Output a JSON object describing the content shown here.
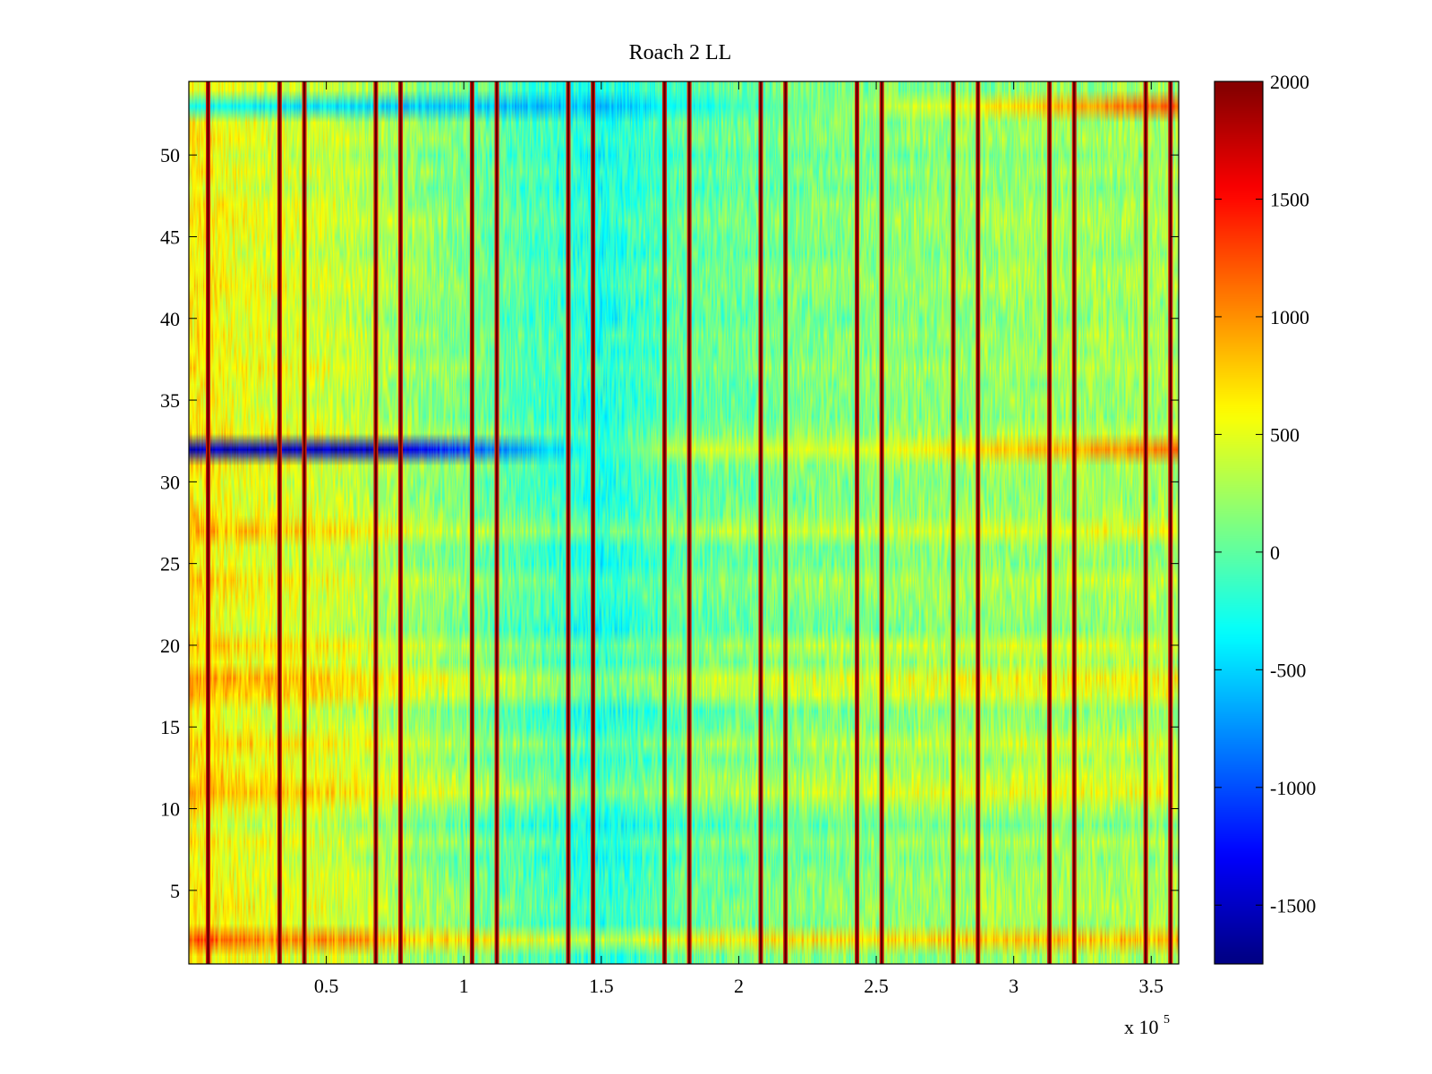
{
  "chart_data": {
    "type": "heatmap",
    "title": "Roach 2 LL",
    "xlabel": "",
    "ylabel": "",
    "x_exponent_label": {
      "base": "x 10",
      "exponent": "5"
    },
    "xlim": [
      0,
      360000
    ],
    "ylim": [
      0.5,
      54.5
    ],
    "rows": 54,
    "x_ticks": [
      {
        "value": 50000,
        "label": "0.5"
      },
      {
        "value": 100000,
        "label": "1"
      },
      {
        "value": 150000,
        "label": "1.5"
      },
      {
        "value": 200000,
        "label": "2"
      },
      {
        "value": 250000,
        "label": "2.5"
      },
      {
        "value": 300000,
        "label": "3"
      },
      {
        "value": 350000,
        "label": "3.5"
      }
    ],
    "y_ticks": [
      {
        "value": 5,
        "label": "5"
      },
      {
        "value": 10,
        "label": "10"
      },
      {
        "value": 15,
        "label": "15"
      },
      {
        "value": 20,
        "label": "20"
      },
      {
        "value": 25,
        "label": "25"
      },
      {
        "value": 30,
        "label": "30"
      },
      {
        "value": 35,
        "label": "35"
      },
      {
        "value": 40,
        "label": "40"
      },
      {
        "value": 45,
        "label": "45"
      },
      {
        "value": 50,
        "label": "50"
      }
    ],
    "colorbar": {
      "colormap": "jet",
      "clim": [
        -1750,
        2000
      ],
      "ticks": [
        {
          "value": 2000,
          "label": "2000"
        },
        {
          "value": 1500,
          "label": "1500"
        },
        {
          "value": 1000,
          "label": "1000"
        },
        {
          "value": 500,
          "label": "500"
        },
        {
          "value": 0,
          "label": "0"
        },
        {
          "value": -500,
          "label": "-500"
        },
        {
          "value": -1000,
          "label": "-1000"
        },
        {
          "value": -1500,
          "label": "-1500"
        }
      ]
    },
    "dark_vertical_lines_x": [
      7000,
      33000,
      42000,
      68000,
      77000,
      103000,
      112000,
      138000,
      147000,
      173000,
      182000,
      208000,
      217000,
      243000,
      252000,
      278000,
      287000,
      313000,
      322000,
      348000,
      357000
    ],
    "column_trend": {
      "x": [
        0,
        20000,
        50000,
        70000,
        100000,
        130000,
        150000,
        180000,
        220000,
        250000,
        300000,
        360000
      ],
      "value": [
        650,
        500,
        420,
        300,
        100,
        -100,
        -250,
        0,
        100,
        150,
        220,
        250
      ]
    },
    "row_offsets": [
      {
        "row": 2,
        "value": 600
      },
      {
        "row": 9,
        "value": -150
      },
      {
        "row": 11,
        "value": 250
      },
      {
        "row": 12,
        "value": 200
      },
      {
        "row": 14,
        "value": 250
      },
      {
        "row": 17,
        "value": 300
      },
      {
        "row": 18,
        "value": 300
      },
      {
        "row": 20,
        "value": 150
      },
      {
        "row": 24,
        "value": 150
      },
      {
        "row": 27,
        "value": 200
      },
      {
        "row": 33,
        "value": 150
      }
    ],
    "special_rows": [
      {
        "row": 32,
        "x": [
          0,
          70000,
          100000,
          150000,
          180000,
          250000,
          360000
        ],
        "value": [
          -1500,
          -1500,
          -1000,
          -200,
          400,
          500,
          1100
        ]
      },
      {
        "row": 53,
        "x": [
          0,
          70000,
          150000,
          250000,
          300000,
          360000
        ],
        "value": [
          -300,
          -500,
          -600,
          300,
          700,
          1200
        ]
      }
    ]
  }
}
